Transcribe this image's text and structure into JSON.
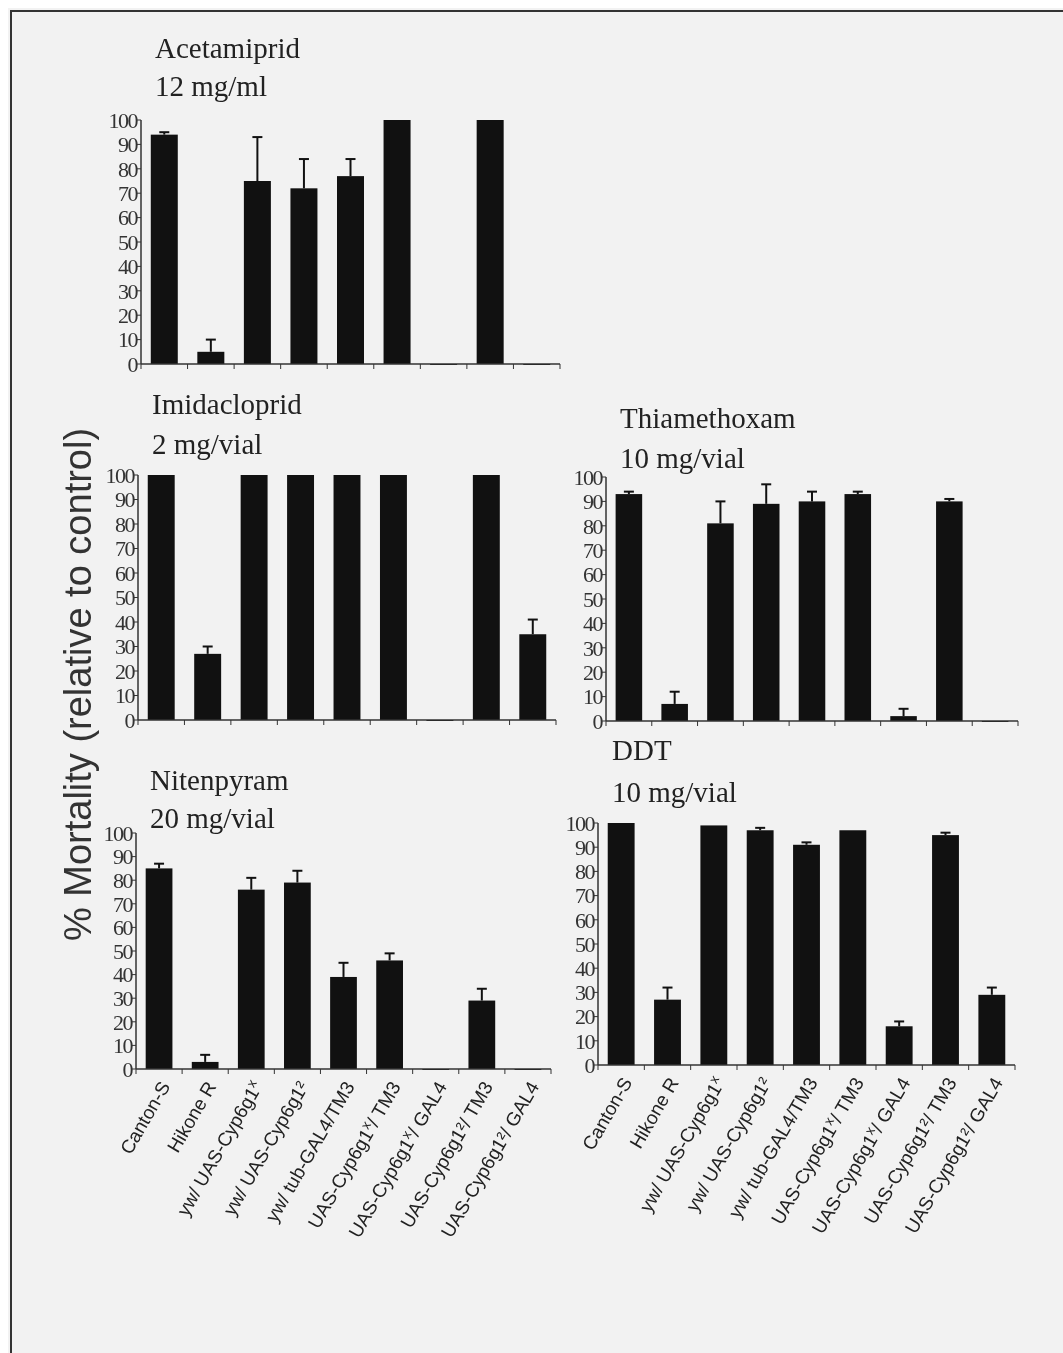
{
  "chart_data": [
    {
      "type": "bar",
      "title": "Acetamiprid",
      "subtitle": "12 mg/ml",
      "ylabel": "% Mortality (relative to control)",
      "categories": [
        null,
        null,
        null,
        null,
        null,
        null,
        null,
        null,
        null
      ],
      "color": "#111111",
      "values": [
        94,
        5,
        75,
        72,
        77,
        100,
        0,
        100,
        0
      ],
      "errors": [
        [
          94,
          95
        ],
        [
          5,
          10
        ],
        [
          75,
          93
        ],
        [
          72,
          84
        ],
        [
          77,
          84
        ],
        null,
        null,
        null,
        null
      ],
      "ylim": [
        0,
        100
      ],
      "yticks": [
        0,
        10,
        20,
        30,
        40,
        50,
        60,
        70,
        80,
        90,
        100
      ]
    },
    {
      "type": "bar",
      "title": "Imidacloprid",
      "subtitle": "2 mg/vial",
      "categories": [
        null,
        null,
        null,
        null,
        null,
        null,
        null,
        null,
        null
      ],
      "color": "#111111",
      "values": [
        100,
        27,
        100,
        100,
        100,
        100,
        0,
        100,
        35
      ],
      "errors": [
        null,
        [
          27,
          30
        ],
        null,
        null,
        null,
        null,
        null,
        null,
        [
          35,
          41
        ]
      ],
      "ylim": [
        0,
        100
      ],
      "yticks": [
        0,
        10,
        20,
        30,
        40,
        50,
        60,
        70,
        80,
        90,
        100
      ]
    },
    {
      "type": "bar",
      "title": "Thiamethoxam",
      "subtitle": "10 mg/vial",
      "categories": [
        null,
        null,
        null,
        null,
        null,
        null,
        null,
        null,
        null
      ],
      "color": "#111111",
      "values": [
        93,
        7,
        81,
        89,
        90,
        93,
        2,
        90,
        0
      ],
      "errors": [
        [
          93,
          94
        ],
        [
          7,
          12
        ],
        [
          81,
          90
        ],
        [
          89,
          97
        ],
        [
          90,
          94
        ],
        [
          93,
          94
        ],
        [
          2,
          5
        ],
        [
          90,
          91
        ],
        null
      ],
      "ylim": [
        0,
        100
      ],
      "yticks": [
        0,
        10,
        20,
        30,
        40,
        50,
        60,
        70,
        80,
        90,
        100
      ]
    },
    {
      "type": "bar",
      "title": "Nitenpyram",
      "subtitle": "20 mg/vial",
      "categories": [
        "Canton-S",
        "Hikone R",
        "yw/ UAS-Cyp6g1$^{x}$",
        "yw/ UAS-Cyp6g1²",
        "yw/ tub-GAL4/TM3",
        "UAS-Cyp6g1$^{x}$/ TM3",
        "UAS-Cyp6g1$^{x}$/ GAL4",
        "UAS-Cyp6g1²/ TM3",
        "UAS-Cyp6g1²/ GAL4"
      ],
      "color": "#111111",
      "values": [
        85,
        3,
        76,
        79,
        39,
        46,
        0,
        29,
        0
      ],
      "errors": [
        [
          85,
          87
        ],
        [
          3,
          6
        ],
        [
          76,
          81
        ],
        [
          79,
          84
        ],
        [
          39,
          45
        ],
        [
          46,
          49
        ],
        null,
        [
          29,
          34
        ],
        null
      ],
      "ylim": [
        0,
        100
      ],
      "yticks": [
        0,
        10,
        20,
        30,
        40,
        50,
        60,
        70,
        80,
        90,
        100
      ]
    },
    {
      "type": "bar",
      "title": "DDT",
      "subtitle": "10 mg/vial",
      "categories": [
        "Canton-S",
        "Hikone R",
        "yw/ UAS-Cyp6g1$^{x}$",
        "yw/ UAS-Cyp6g1²",
        "yw/ tub-GAL4/TM3",
        "UAS-Cyp6g1$^{x}$/ TM3",
        "UAS-Cyp6g1$^{x}$/ GAL4",
        "UAS-Cyp6g1²/ TM3",
        "UAS-Cyp6g1²/ GAL4"
      ],
      "color": "#111111",
      "values": [
        100,
        27,
        99,
        97,
        91,
        97,
        16,
        95,
        29
      ],
      "errors": [
        null,
        [
          27,
          32
        ],
        null,
        [
          97,
          98
        ],
        [
          91,
          92
        ],
        null,
        [
          16,
          18
        ],
        [
          95,
          96
        ],
        [
          29,
          32
        ]
      ],
      "ylim": [
        0,
        100
      ],
      "yticks": [
        0,
        10,
        20,
        30,
        40,
        50,
        60,
        70,
        80,
        90,
        100
      ]
    }
  ]
}
